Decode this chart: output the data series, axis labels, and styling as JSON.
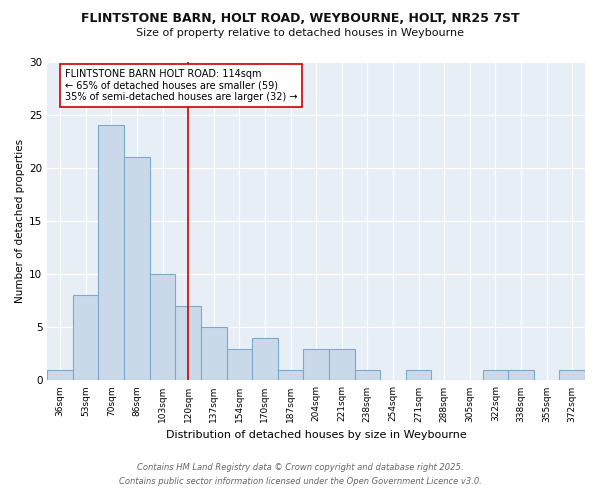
{
  "title1": "FLINTSTONE BARN, HOLT ROAD, WEYBOURNE, HOLT, NR25 7ST",
  "title2": "Size of property relative to detached houses in Weybourne",
  "xlabel": "Distribution of detached houses by size in Weybourne",
  "ylabel": "Number of detached properties",
  "bin_labels": [
    "36sqm",
    "53sqm",
    "70sqm",
    "86sqm",
    "103sqm",
    "120sqm",
    "137sqm",
    "154sqm",
    "170sqm",
    "187sqm",
    "204sqm",
    "221sqm",
    "238sqm",
    "254sqm",
    "271sqm",
    "288sqm",
    "305sqm",
    "322sqm",
    "338sqm",
    "355sqm",
    "372sqm"
  ],
  "bin_values": [
    1,
    8,
    24,
    21,
    10,
    7,
    5,
    3,
    4,
    1,
    3,
    3,
    1,
    0,
    1,
    0,
    0,
    1,
    1,
    0,
    1
  ],
  "bar_color": "#c9d9ea",
  "bar_edge_color": "#7aaacc",
  "vline_x": 5.0,
  "vline_color": "#cc0000",
  "annotation_text": "FLINTSTONE BARN HOLT ROAD: 114sqm\n← 65% of detached houses are smaller (59)\n35% of semi-detached houses are larger (32) →",
  "ylim": [
    0,
    30
  ],
  "yticks": [
    0,
    5,
    10,
    15,
    20,
    25,
    30
  ],
  "footer1": "Contains HM Land Registry data © Crown copyright and database right 2025.",
  "footer2": "Contains public sector information licensed under the Open Government Licence v3.0.",
  "bg_color": "#ffffff",
  "plot_bg_color": "#e8eef5",
  "grid_color": "#ffffff"
}
